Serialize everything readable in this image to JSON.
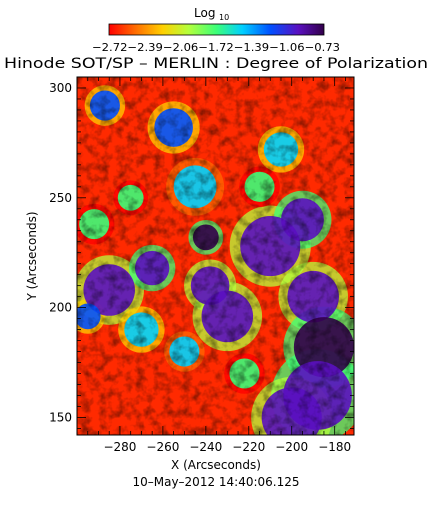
{
  "chart_data": {
    "type": "heatmap",
    "title": "Hinode SOT/SP – MERLIN : Degree of Polarization",
    "subtitle": "10–May–2012 14:40:06.125",
    "xlabel": "X (Arcseconds)",
    "ylabel": "Y (Arcseconds)",
    "xlim": [
      -300,
      -171
    ],
    "ylim": [
      142,
      305
    ],
    "x_ticks": [
      -280,
      -260,
      -240,
      -220,
      -200,
      -180
    ],
    "y_ticks": [
      150,
      200,
      250,
      300
    ],
    "colorbar": {
      "label": "Log",
      "label_sub": "10",
      "min": -2.72,
      "max": -0.73,
      "tick_values": [
        -2.72,
        -2.39,
        -2.06,
        -1.72,
        -1.39,
        -1.06,
        -0.73
      ],
      "tick_labels_text": "−2.72−2.39−2.06−1.72−1.39−1.06−0.73",
      "colors": [
        "#ff0000",
        "#ff6a00",
        "#ffd000",
        "#b4ff3c",
        "#3cff78",
        "#00d0ff",
        "#0050ff",
        "#5a10c0",
        "#32004a"
      ]
    },
    "regions_note_free_values": {
      "blobs": [
        {
          "x": -287,
          "y": 292,
          "r": 7,
          "v": -1.3
        },
        {
          "x": -255,
          "y": 282,
          "r": 9,
          "v": -1.2
        },
        {
          "x": -205,
          "y": 272,
          "r": 8,
          "v": -1.4
        },
        {
          "x": -245,
          "y": 255,
          "r": 10,
          "v": -1.5
        },
        {
          "x": -285,
          "y": 208,
          "r": 12,
          "v": -1.0
        },
        {
          "x": -265,
          "y": 218,
          "r": 8,
          "v": -0.9
        },
        {
          "x": -240,
          "y": 232,
          "r": 6,
          "v": -0.85
        },
        {
          "x": -238,
          "y": 210,
          "r": 9,
          "v": -0.95
        },
        {
          "x": -230,
          "y": 196,
          "r": 12,
          "v": -1.1
        },
        {
          "x": -210,
          "y": 228,
          "r": 14,
          "v": -0.95
        },
        {
          "x": -195,
          "y": 240,
          "r": 10,
          "v": -0.9
        },
        {
          "x": -190,
          "y": 205,
          "r": 12,
          "v": -1.0
        },
        {
          "x": -185,
          "y": 182,
          "r": 14,
          "v": -0.85
        },
        {
          "x": -188,
          "y": 160,
          "r": 16,
          "v": -0.9
        },
        {
          "x": -200,
          "y": 150,
          "r": 14,
          "v": -1.05
        },
        {
          "x": -295,
          "y": 196,
          "r": 6,
          "v": -1.3
        },
        {
          "x": -270,
          "y": 190,
          "r": 8,
          "v": -1.4
        },
        {
          "x": -250,
          "y": 180,
          "r": 7,
          "v": -1.6
        },
        {
          "x": -222,
          "y": 170,
          "r": 7,
          "v": -1.7
        },
        {
          "x": -292,
          "y": 238,
          "r": 7,
          "v": -1.7
        },
        {
          "x": -275,
          "y": 250,
          "r": 6,
          "v": -1.8
        },
        {
          "x": -215,
          "y": 255,
          "r": 7,
          "v": -1.7
        }
      ]
    }
  }
}
